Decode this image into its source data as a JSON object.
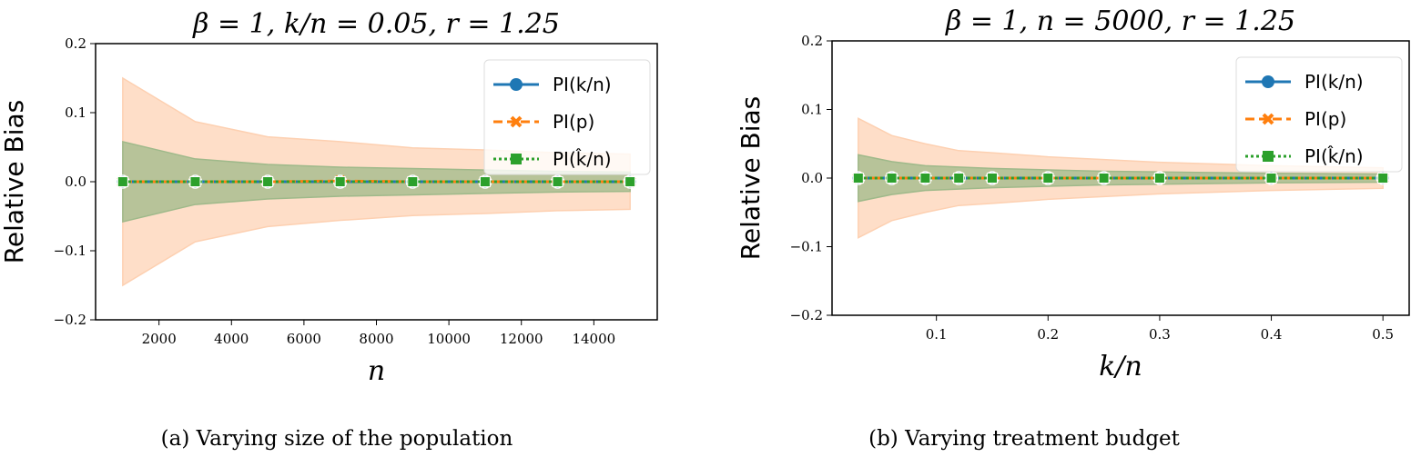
{
  "colors": {
    "blue": "#1f77b4",
    "orange": "#ff7f0e",
    "green": "#2ca02c",
    "orange_band": "#fdd0b1",
    "green_band": "#9fb98a"
  },
  "chart_data": [
    {
      "type": "line",
      "title": "β = 1, k/n = 0.05, r = 1.25",
      "xlabel": "n",
      "ylabel": "Relative Bias",
      "caption": "(a) Varying size of the population",
      "xlim": [
        250,
        15750
      ],
      "ylim": [
        -0.2,
        0.2
      ],
      "grid": false,
      "legend_position": "top-right",
      "xticks": [
        2000,
        4000,
        6000,
        8000,
        10000,
        12000,
        14000
      ],
      "xtick_labels": [
        "2000",
        "4000",
        "6000",
        "8000",
        "10000",
        "12000",
        "14000"
      ],
      "yticks": [
        -0.2,
        -0.1,
        0.0,
        0.1,
        0.2
      ],
      "ytick_labels": [
        "−0.2",
        "−0.1",
        "0.0",
        "0.1",
        "0.2"
      ],
      "x": [
        1000,
        3000,
        5000,
        7000,
        9000,
        11000,
        13000,
        15000
      ],
      "series": [
        {
          "name": "PI(k/n)",
          "color": "#1f77b4",
          "marker": "circle",
          "dash": "solid",
          "values": [
            0,
            0,
            0,
            0,
            0,
            0,
            0,
            0
          ]
        },
        {
          "name": "PI(p)",
          "color": "#ff7f0e",
          "marker": "x",
          "dash": "dashed",
          "values": [
            0,
            0,
            0,
            0.001,
            0,
            0,
            0,
            0
          ],
          "band": [
            0.15,
            0.087,
            0.065,
            0.057,
            0.049,
            0.046,
            0.042,
            0.04
          ]
        },
        {
          "name": "PI(k̂/n)",
          "color": "#2ca02c",
          "marker": "square",
          "dash": "dotted",
          "values": [
            0,
            0,
            0,
            0,
            0,
            0,
            0,
            0
          ],
          "band": [
            0.058,
            0.033,
            0.025,
            0.021,
            0.019,
            0.017,
            0.015,
            0.014
          ]
        }
      ]
    },
    {
      "type": "line",
      "title": "β = 1, n = 5000, r = 1.25",
      "xlabel": "k/n",
      "ylabel": "Relative Bias",
      "caption": "(b) Varying treatment budget",
      "xlim": [
        0.0065,
        0.5235
      ],
      "ylim": [
        -0.2,
        0.2
      ],
      "grid": false,
      "legend_position": "top-right",
      "xticks": [
        0.1,
        0.2,
        0.3,
        0.4,
        0.5
      ],
      "xtick_labels": [
        "0.1",
        "0.2",
        "0.3",
        "0.4",
        "0.5"
      ],
      "yticks": [
        -0.2,
        -0.1,
        0.0,
        0.1,
        0.2
      ],
      "ytick_labels": [
        "−0.2",
        "−0.1",
        "0.0",
        "0.1",
        "0.2"
      ],
      "x": [
        0.03,
        0.06,
        0.09,
        0.12,
        0.15,
        0.2,
        0.25,
        0.3,
        0.4,
        0.5
      ],
      "series": [
        {
          "name": "PI(k/n)",
          "color": "#1f77b4",
          "marker": "circle",
          "dash": "solid",
          "values": [
            0,
            0,
            0,
            0,
            0,
            0,
            0,
            0,
            0,
            0
          ]
        },
        {
          "name": "PI(p)",
          "color": "#ff7f0e",
          "marker": "x",
          "dash": "dashed",
          "values": [
            0,
            0,
            0,
            0,
            0,
            0,
            0,
            0,
            0,
            0
          ],
          "band": [
            0.087,
            0.062,
            0.05,
            0.04,
            0.037,
            0.031,
            0.027,
            0.023,
            0.018,
            0.015
          ]
        },
        {
          "name": "PI(k̂/n)",
          "color": "#2ca02c",
          "marker": "square",
          "dash": "dotted",
          "values": [
            0,
            0,
            0,
            0,
            0,
            0,
            0,
            0,
            0,
            0
          ],
          "band": [
            0.034,
            0.024,
            0.018,
            0.016,
            0.014,
            0.012,
            0.01,
            0.009,
            0.007,
            0.006
          ]
        }
      ]
    }
  ]
}
